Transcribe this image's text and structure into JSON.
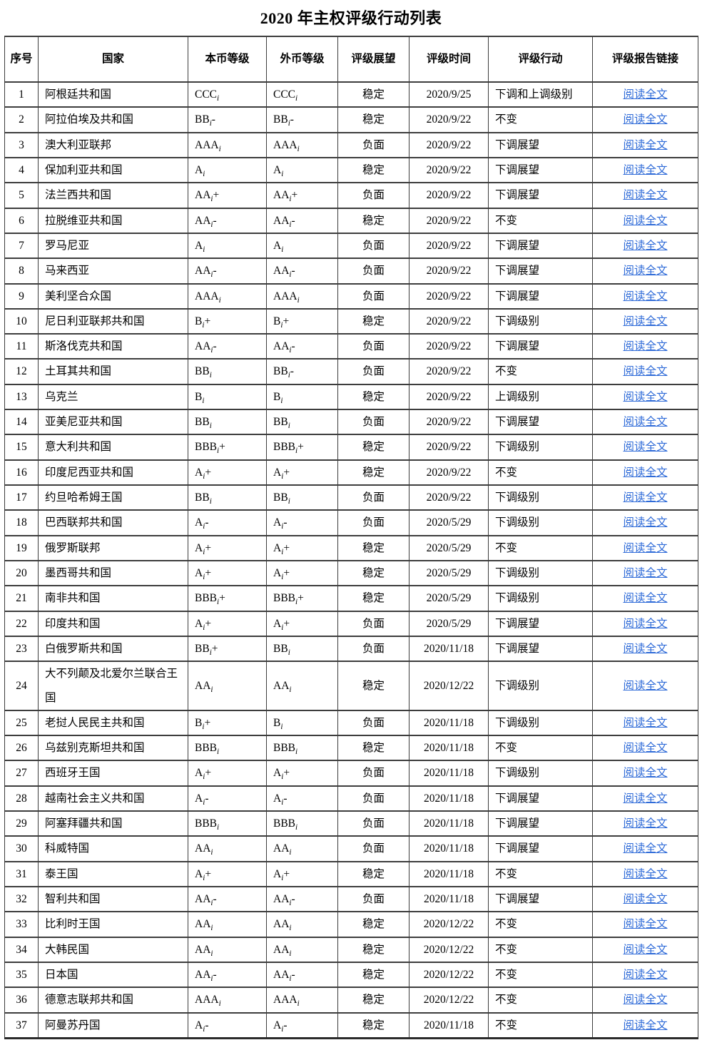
{
  "title": "2020 年主权评级行动列表",
  "table": {
    "columns": [
      {
        "key": "no",
        "label": "序号",
        "align": "center"
      },
      {
        "key": "country",
        "label": "国家",
        "align": "left"
      },
      {
        "key": "local",
        "label": "本币等级",
        "align": "left"
      },
      {
        "key": "foreign",
        "label": "外币等级",
        "align": "left"
      },
      {
        "key": "outlook",
        "label": "评级展望",
        "align": "center"
      },
      {
        "key": "date",
        "label": "评级时间",
        "align": "center"
      },
      {
        "key": "action",
        "label": "评级行动",
        "align": "left"
      },
      {
        "key": "link",
        "label": "评级报告链接",
        "align": "center"
      }
    ],
    "link_label": "阅读全文",
    "link_color": "#2f6bd8",
    "rows": [
      {
        "no": "1",
        "country": "阿根廷共和国",
        "local": "CCC_i",
        "foreign": "CCC_i",
        "outlook": "稳定",
        "date": "2020/9/25",
        "action": "下调和上调级别"
      },
      {
        "no": "2",
        "country": "阿拉伯埃及共和国",
        "local": "BB_i-",
        "foreign": "BB_i-",
        "outlook": "稳定",
        "date": "2020/9/22",
        "action": "不变"
      },
      {
        "no": "3",
        "country": "澳大利亚联邦",
        "local": "AAA_i",
        "foreign": "AAA_i",
        "outlook": "负面",
        "date": "2020/9/22",
        "action": "下调展望"
      },
      {
        "no": "4",
        "country": "保加利亚共和国",
        "local": "A_i",
        "foreign": "A_i",
        "outlook": "稳定",
        "date": "2020/9/22",
        "action": "下调展望"
      },
      {
        "no": "5",
        "country": "法兰西共和国",
        "local": "AA_i+",
        "foreign": "AA_i+",
        "outlook": "负面",
        "date": "2020/9/22",
        "action": "下调展望"
      },
      {
        "no": "6",
        "country": "拉脱维亚共和国",
        "local": "AA_i-",
        "foreign": "AA_i-",
        "outlook": "稳定",
        "date": "2020/9/22",
        "action": "不变"
      },
      {
        "no": "7",
        "country": "罗马尼亚",
        "local": "A_i",
        "foreign": "A_i",
        "outlook": "负面",
        "date": "2020/9/22",
        "action": "下调展望"
      },
      {
        "no": "8",
        "country": "马来西亚",
        "local": "AA_i-",
        "foreign": "AA_i-",
        "outlook": "负面",
        "date": "2020/9/22",
        "action": "下调展望"
      },
      {
        "no": "9",
        "country": "美利坚合众国",
        "local": "AAA_i",
        "foreign": "AAA_i",
        "outlook": "负面",
        "date": "2020/9/22",
        "action": "下调展望"
      },
      {
        "no": "10",
        "country": "尼日利亚联邦共和国",
        "local": "B_i+",
        "foreign": "B_i+",
        "outlook": "稳定",
        "date": "2020/9/22",
        "action": "下调级别"
      },
      {
        "no": "11",
        "country": "斯洛伐克共和国",
        "local": "AA_i-",
        "foreign": "AA_i-",
        "outlook": "负面",
        "date": "2020/9/22",
        "action": "下调展望"
      },
      {
        "no": "12",
        "country": "土耳其共和国",
        "local": "BB_i",
        "foreign": "BB_i-",
        "outlook": "负面",
        "date": "2020/9/22",
        "action": "不变"
      },
      {
        "no": "13",
        "country": "乌克兰",
        "local": "B_i",
        "foreign": "B_i",
        "outlook": "稳定",
        "date": "2020/9/22",
        "action": "上调级别"
      },
      {
        "no": "14",
        "country": "亚美尼亚共和国",
        "local": "BB_i",
        "foreign": "BB_i",
        "outlook": "负面",
        "date": "2020/9/22",
        "action": "下调展望"
      },
      {
        "no": "15",
        "country": "意大利共和国",
        "local": "BBB_i+",
        "foreign": "BBB_i+",
        "outlook": "稳定",
        "date": "2020/9/22",
        "action": "下调级别"
      },
      {
        "no": "16",
        "country": "印度尼西亚共和国",
        "local": "A_i+",
        "foreign": "A_i+",
        "outlook": "稳定",
        "date": "2020/9/22",
        "action": "不变"
      },
      {
        "no": "17",
        "country": "约旦哈希姆王国",
        "local": "BB_i",
        "foreign": "BB_i",
        "outlook": "负面",
        "date": "2020/9/22",
        "action": "下调级别"
      },
      {
        "no": "18",
        "country": "巴西联邦共和国",
        "local": "A_i-",
        "foreign": "A_i-",
        "outlook": "负面",
        "date": "2020/5/29",
        "action": "下调级别"
      },
      {
        "no": "19",
        "country": "俄罗斯联邦",
        "local": "A_i+",
        "foreign": "A_i+",
        "outlook": "稳定",
        "date": "2020/5/29",
        "action": "不变"
      },
      {
        "no": "20",
        "country": "墨西哥共和国",
        "local": "A_i+",
        "foreign": "A_i+",
        "outlook": "稳定",
        "date": "2020/5/29",
        "action": "下调级别"
      },
      {
        "no": "21",
        "country": "南非共和国",
        "local": "BBB_i+",
        "foreign": "BBB_i+",
        "outlook": "稳定",
        "date": "2020/5/29",
        "action": "下调级别"
      },
      {
        "no": "22",
        "country": "印度共和国",
        "local": "A_i+",
        "foreign": "A_i+",
        "outlook": "负面",
        "date": "2020/5/29",
        "action": "下调展望"
      },
      {
        "no": "23",
        "country": "白俄罗斯共和国",
        "local": "BB_i+",
        "foreign": "BB_i",
        "outlook": "负面",
        "date": "2020/11/18",
        "action": "下调展望"
      },
      {
        "no": "24",
        "country": "大不列颠及北爱尔兰联合王国",
        "local": "AA_i",
        "foreign": "AA_i",
        "outlook": "稳定",
        "date": "2020/12/22",
        "action": "下调级别"
      },
      {
        "no": "25",
        "country": "老挝人民民主共和国",
        "local": "B_i+",
        "foreign": "B_i",
        "outlook": "负面",
        "date": "2020/11/18",
        "action": "下调级别"
      },
      {
        "no": "26",
        "country": "乌兹别克斯坦共和国",
        "local": "BBB_i",
        "foreign": "BBB_i",
        "outlook": "稳定",
        "date": "2020/11/18",
        "action": "不变"
      },
      {
        "no": "27",
        "country": "西班牙王国",
        "local": "A_i+",
        "foreign": "A_i+",
        "outlook": "负面",
        "date": "2020/11/18",
        "action": "下调级别"
      },
      {
        "no": "28",
        "country": "越南社会主义共和国",
        "local": "A_i-",
        "foreign": "A_i-",
        "outlook": "负面",
        "date": "2020/11/18",
        "action": "下调展望"
      },
      {
        "no": "29",
        "country": "阿塞拜疆共和国",
        "local": "BBB_i",
        "foreign": "BBB_i",
        "outlook": "负面",
        "date": "2020/11/18",
        "action": "下调展望"
      },
      {
        "no": "30",
        "country": "科威特国",
        "local": "AA_i",
        "foreign": "AA_i",
        "outlook": "负面",
        "date": "2020/11/18",
        "action": "下调展望"
      },
      {
        "no": "31",
        "country": "泰王国",
        "local": "A_i+",
        "foreign": "A_i+",
        "outlook": "稳定",
        "date": "2020/11/18",
        "action": "不变"
      },
      {
        "no": "32",
        "country": "智利共和国",
        "local": "AA_i-",
        "foreign": "AA_i-",
        "outlook": "负面",
        "date": "2020/11/18",
        "action": "下调展望"
      },
      {
        "no": "33",
        "country": "比利时王国",
        "local": "AA_i",
        "foreign": "AA_i",
        "outlook": "稳定",
        "date": "2020/12/22",
        "action": "不变"
      },
      {
        "no": "34",
        "country": "大韩民国",
        "local": "AA_i",
        "foreign": "AA_i",
        "outlook": "稳定",
        "date": "2020/12/22",
        "action": "不变"
      },
      {
        "no": "35",
        "country": "日本国",
        "local": "AA_i-",
        "foreign": "AA_i-",
        "outlook": "稳定",
        "date": "2020/12/22",
        "action": "不变"
      },
      {
        "no": "36",
        "country": "德意志联邦共和国",
        "local": "AAA_i",
        "foreign": "AAA_i",
        "outlook": "稳定",
        "date": "2020/12/22",
        "action": "不变"
      },
      {
        "no": "37",
        "country": "阿曼苏丹国",
        "local": "A_i-",
        "foreign": "A_i-",
        "outlook": "稳定",
        "date": "2020/11/18",
        "action": "不变"
      }
    ]
  }
}
